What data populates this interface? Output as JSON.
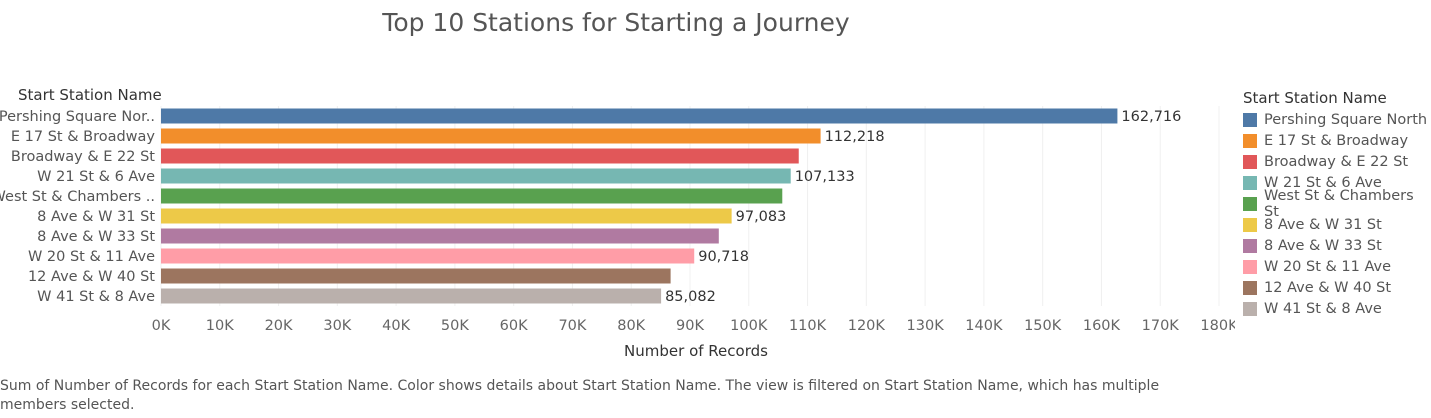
{
  "chart_data": {
    "type": "bar",
    "orientation": "horizontal",
    "title": "Top 10 Stations for Starting a Journey",
    "row_header": "Start Station Name",
    "xlabel": "Number of Records",
    "xlim": [
      0,
      180000
    ],
    "x_ticks": [
      "0K",
      "10K",
      "20K",
      "30K",
      "40K",
      "50K",
      "60K",
      "70K",
      "80K",
      "90K",
      "100K",
      "110K",
      "120K",
      "130K",
      "140K",
      "150K",
      "160K",
      "170K",
      "180K"
    ],
    "categories": [
      "Pershing Square Nor..",
      "E 17 St & Broadway",
      "Broadway & E 22 St",
      "W 21 St & 6 Ave",
      "West St & Chambers ..",
      "8 Ave & W 31 St",
      "8 Ave & W 33 St",
      "W 20 St & 11 Ave",
      "12 Ave & W 40 St",
      "W 41 St & 8 Ave"
    ],
    "values": [
      162716,
      112218,
      108500,
      107133,
      105700,
      97083,
      94900,
      90718,
      86700,
      85082
    ],
    "data_labels": [
      "162,716",
      "112,218",
      "",
      "107,133",
      "",
      "97,083",
      "",
      "90,718",
      "",
      "85,082"
    ],
    "colors": [
      "#4e79a7",
      "#f28e2b",
      "#e15759",
      "#76b7b2",
      "#59a14f",
      "#edc948",
      "#b07aa1",
      "#ff9da7",
      "#9c755f",
      "#bab0ac"
    ],
    "grid": true,
    "legend": {
      "title": "Start Station Name",
      "position": "right",
      "items": [
        "Pershing Square North",
        "E 17 St & Broadway",
        "Broadway & E 22 St",
        "W 21 St & 6 Ave",
        "West St & Chambers St",
        "8 Ave & W 31 St",
        "8 Ave & W 33 St",
        "W 20 St & 11 Ave",
        "12 Ave & W 40 St",
        "W 41 St & 8 Ave"
      ]
    }
  },
  "caption": "Sum of Number of Records for each Start Station Name.  Color shows details about Start Station Name. The view is filtered on Start Station Name, which has multiple members selected."
}
